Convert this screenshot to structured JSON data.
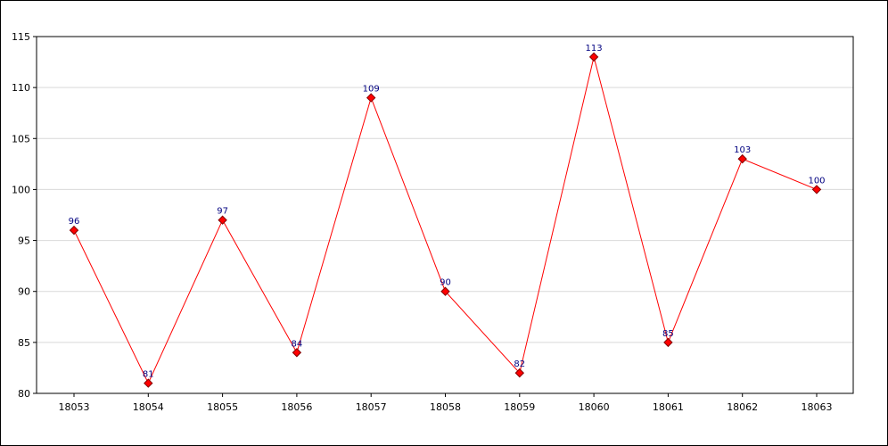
{
  "chart_data": {
    "type": "line",
    "title": "",
    "xlabel": "",
    "ylabel": "",
    "x": [
      "18053",
      "18054",
      "18055",
      "18056",
      "18057",
      "18058",
      "18059",
      "18060",
      "18061",
      "18062",
      "18063"
    ],
    "series": [
      {
        "values": [
          96,
          81,
          97,
          84,
          109,
          90,
          82,
          113,
          85,
          103,
          100
        ]
      }
    ],
    "ylim": [
      80,
      115
    ],
    "yticks": [
      "80",
      "85",
      "90",
      "95",
      "100",
      "105",
      "110",
      "115"
    ],
    "grid": "horizontal",
    "legend": "none",
    "data_labels": true,
    "colors": {
      "line": "#ff0000",
      "marker_fill": "#ff0000",
      "marker_stroke": "#800000",
      "label": "#000080",
      "grid": "#d9d9d9"
    }
  }
}
